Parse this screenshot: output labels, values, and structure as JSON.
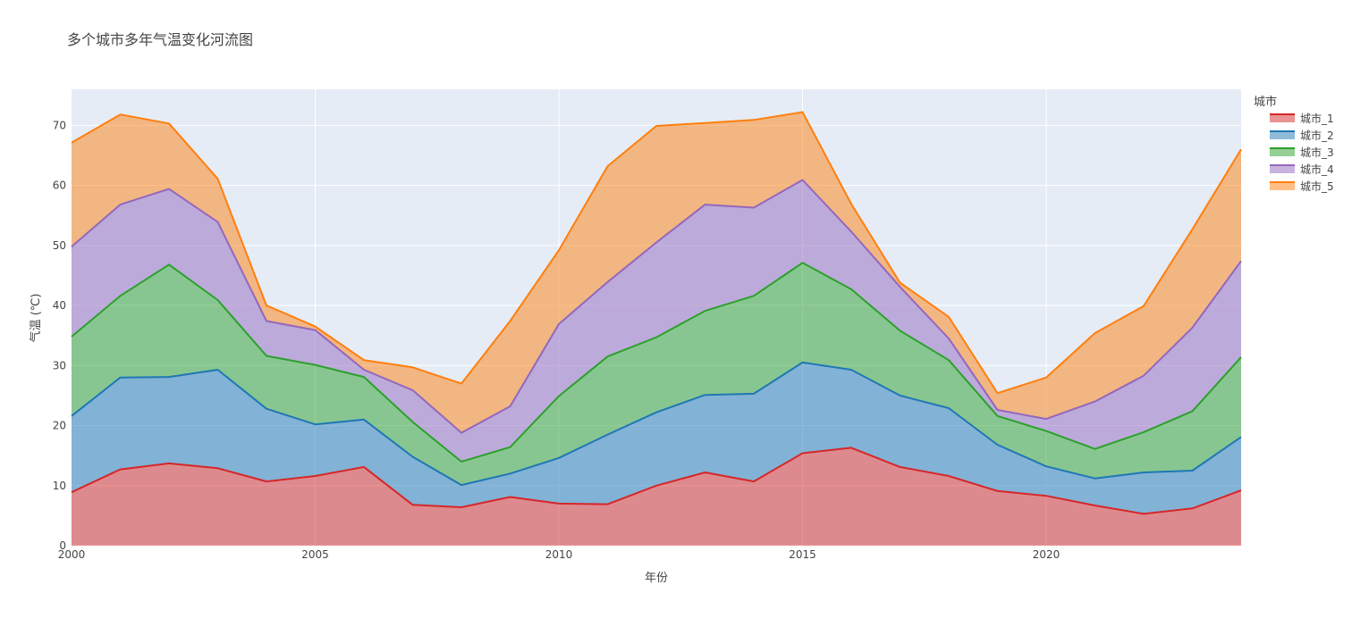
{
  "chart_data": {
    "type": "area",
    "stacked": true,
    "title": "多个城市多年气温变化河流图",
    "xlabel": "年份",
    "ylabel": "气温 (℃)",
    "xlim": [
      2000,
      2024
    ],
    "ylim": [
      0,
      76
    ],
    "x_ticks": [
      2000,
      2005,
      2010,
      2015,
      2020
    ],
    "y_ticks": [
      0,
      10,
      20,
      30,
      40,
      50,
      60,
      70
    ],
    "grid": true,
    "legend": {
      "title": "城市",
      "position": "right"
    },
    "x": [
      2000,
      2001,
      2002,
      2003,
      2004,
      2005,
      2006,
      2007,
      2008,
      2009,
      2010,
      2011,
      2012,
      2013,
      2014,
      2015,
      2016,
      2017,
      2018,
      2019,
      2020,
      2021,
      2022,
      2023,
      2024
    ],
    "series": [
      {
        "name": "城市_1",
        "color": "#d62728",
        "values": [
          8.9,
          12.7,
          13.7,
          12.9,
          10.7,
          11.6,
          13.1,
          6.8,
          6.4,
          8.1,
          7.0,
          6.9,
          10.0,
          12.2,
          10.7,
          15.4,
          16.3,
          13.1,
          11.6,
          9.1,
          8.3,
          6.7,
          5.3,
          6.2,
          9.2
        ]
      },
      {
        "name": "城市_2",
        "color": "#1f77b4",
        "values": [
          12.7,
          15.3,
          14.4,
          16.4,
          12.1,
          8.6,
          7.9,
          8.0,
          3.7,
          3.9,
          7.6,
          11.6,
          12.2,
          12.9,
          14.6,
          15.1,
          13.0,
          11.9,
          11.3,
          7.7,
          4.9,
          4.5,
          6.9,
          6.3,
          8.9
        ]
      },
      {
        "name": "城市_3",
        "color": "#2ca02c",
        "values": [
          13.2,
          13.6,
          18.7,
          11.6,
          8.8,
          9.9,
          7.1,
          5.8,
          3.9,
          4.4,
          10.3,
          13.0,
          12.5,
          14.0,
          16.3,
          16.6,
          13.4,
          10.8,
          8.0,
          4.8,
          5.9,
          4.9,
          6.7,
          9.9,
          13.3
        ]
      },
      {
        "name": "城市_4",
        "color": "#9467bd",
        "values": [
          15.0,
          15.2,
          12.6,
          13.0,
          5.8,
          5.8,
          1.2,
          5.3,
          4.8,
          6.8,
          12.0,
          12.4,
          15.8,
          17.7,
          14.7,
          13.8,
          9.6,
          7.3,
          3.6,
          1.0,
          2.0,
          7.9,
          9.4,
          13.9,
          16.0
        ]
      },
      {
        "name": "城市_5",
        "color": "#ff7f0e",
        "values": [
          17.3,
          15.0,
          10.9,
          7.2,
          2.6,
          0.6,
          1.6,
          3.8,
          8.2,
          14.2,
          12.3,
          19.3,
          19.4,
          13.6,
          14.6,
          11.3,
          4.6,
          0.7,
          3.6,
          2.8,
          6.9,
          11.4,
          11.6,
          16.4,
          18.6
        ]
      }
    ]
  }
}
